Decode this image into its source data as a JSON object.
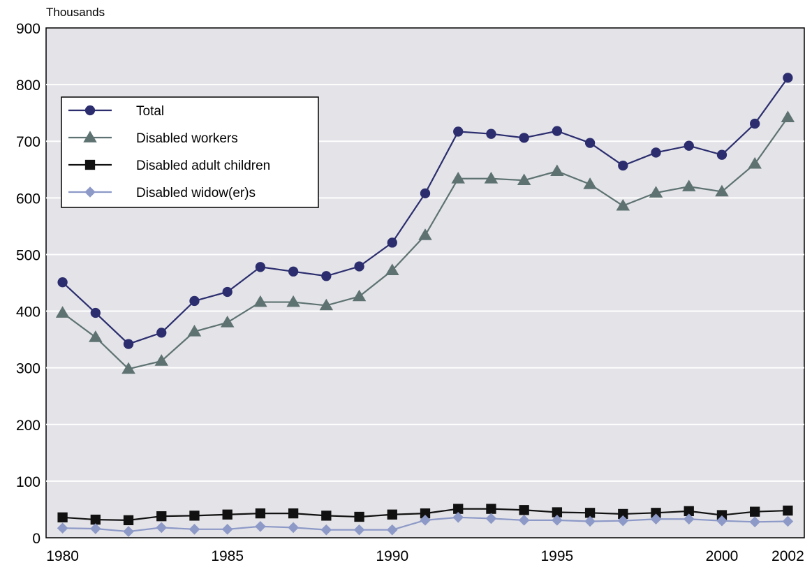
{
  "chart_data": {
    "type": "line",
    "title": "",
    "unit_label": "Thousands",
    "xlabel": "",
    "ylabel": "",
    "x": [
      1980,
      1981,
      1982,
      1983,
      1984,
      1985,
      1986,
      1987,
      1988,
      1989,
      1990,
      1991,
      1992,
      1993,
      1994,
      1995,
      1996,
      1997,
      1998,
      1999,
      2000,
      2001,
      2002
    ],
    "xticks": [
      "1980",
      "1985",
      "1990",
      "1995",
      "2000",
      "2002"
    ],
    "xtick_values": [
      1980,
      1985,
      1990,
      1995,
      2000,
      2002
    ],
    "yticks": [
      "0",
      "100",
      "200",
      "300",
      "400",
      "500",
      "600",
      "700",
      "800",
      "900"
    ],
    "ylim": [
      0,
      900
    ],
    "xlim": [
      1979.5,
      2002.5
    ],
    "grid": "horizontal",
    "legend_position": "top-left",
    "plot_background": "#e3e3e8",
    "series": [
      {
        "name": "Total",
        "color": "#2b2d6e",
        "marker": "circle",
        "values": [
          451,
          397,
          342,
          362,
          418,
          434,
          478,
          470,
          462,
          479,
          521,
          608,
          717,
          713,
          706,
          718,
          697,
          657,
          680,
          692,
          676,
          731,
          812
        ]
      },
      {
        "name": "Disabled workers",
        "color": "#5e7272",
        "marker": "triangle",
        "values": [
          397,
          354,
          298,
          312,
          364,
          380,
          416,
          416,
          410,
          426,
          472,
          534,
          634,
          634,
          631,
          647,
          624,
          586,
          609,
          620,
          611,
          660,
          742
        ]
      },
      {
        "name": "Disabled adult children",
        "color": "#111111",
        "marker": "square",
        "values": [
          36,
          32,
          31,
          38,
          39,
          41,
          43,
          43,
          39,
          37,
          41,
          43,
          51,
          51,
          49,
          45,
          44,
          42,
          44,
          47,
          40,
          46,
          48
        ]
      },
      {
        "name": "Disabled widow(er)s",
        "color": "#8d99c7",
        "marker": "diamond",
        "values": [
          17,
          16,
          11,
          18,
          15,
          15,
          20,
          18,
          14,
          14,
          14,
          31,
          36,
          34,
          31,
          31,
          29,
          30,
          33,
          33,
          30,
          28,
          29
        ]
      }
    ]
  }
}
